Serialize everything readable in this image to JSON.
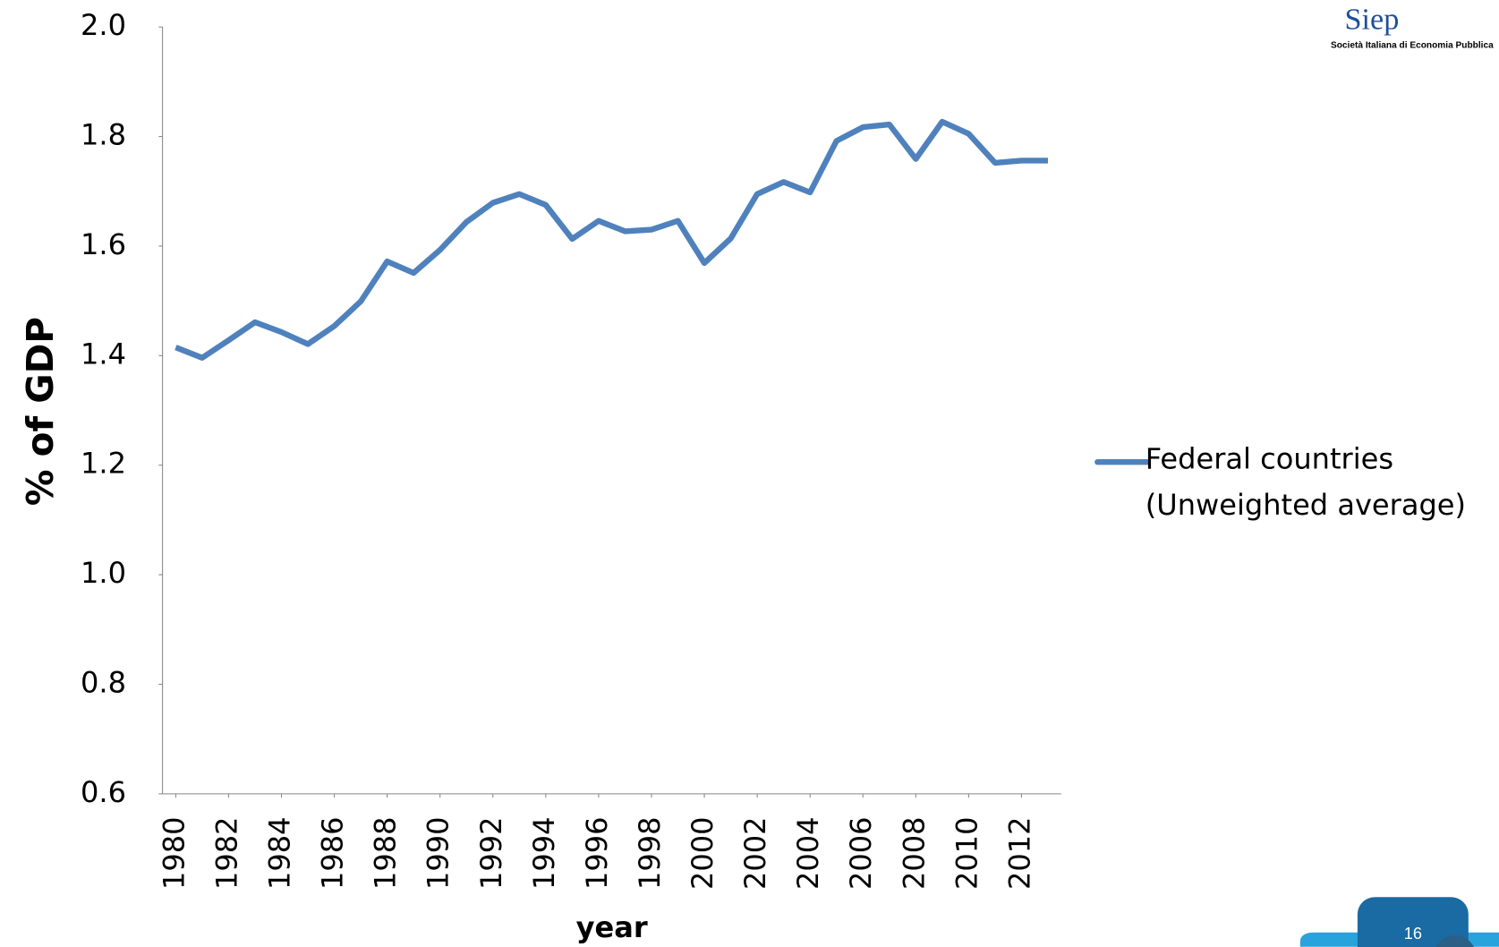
{
  "chart_data": {
    "type": "line",
    "y_label": "% of GDP",
    "x_label": "year",
    "x": [
      1980,
      1981,
      1982,
      1983,
      1984,
      1985,
      1986,
      1987,
      1988,
      1989,
      1990,
      1991,
      1992,
      1993,
      1994,
      1995,
      1996,
      1997,
      1998,
      1999,
      2000,
      2001,
      2002,
      2003,
      2004,
      2005,
      2006,
      2007,
      2008,
      2009,
      2010,
      2011,
      2012,
      2013
    ],
    "series": [
      {
        "name": "Federal countries (Unweighted average)",
        "color": "#4f81bd",
        "values": [
          1.415,
          1.396,
          1.428,
          1.461,
          1.443,
          1.421,
          1.454,
          1.499,
          1.572,
          1.551,
          1.593,
          1.644,
          1.679,
          1.695,
          1.675,
          1.613,
          1.646,
          1.627,
          1.63,
          1.646,
          1.569,
          1.614,
          1.695,
          1.717,
          1.698,
          1.792,
          1.817,
          1.822,
          1.759,
          1.827,
          1.805,
          1.752,
          1.756,
          1.756
        ]
      }
    ],
    "xlim": [
      1979.5,
      2013.5
    ],
    "xticks": [
      1980,
      1982,
      1984,
      1986,
      1988,
      1990,
      1992,
      1994,
      1996,
      1998,
      2000,
      2002,
      2004,
      2006,
      2008,
      2010,
      2012
    ],
    "ylim": [
      0.6,
      2.0
    ],
    "yticks": [
      {
        "value": 0.6,
        "label": "0.6"
      },
      {
        "value": 0.8,
        "label": "0.8"
      },
      {
        "value": 1.0,
        "label": "1.0"
      },
      {
        "value": 1.2,
        "label": "1.2"
      },
      {
        "value": 1.4,
        "label": "1.4"
      },
      {
        "value": 1.6,
        "label": "1.6"
      },
      {
        "value": 1.8,
        "label": "1.8"
      },
      {
        "value": 2.0,
        "label": "2.0"
      }
    ],
    "grid": false,
    "legend": "right"
  },
  "slide": {
    "logo": "Siep",
    "logo_subtitle": "Società Italiana di Economia Pubblica",
    "page_number": "16"
  }
}
